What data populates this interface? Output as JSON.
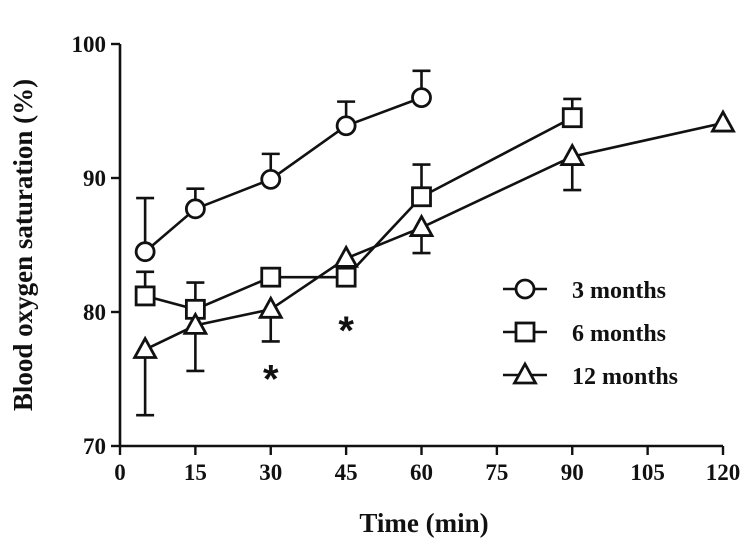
{
  "chart_data": {
    "type": "line",
    "xlabel": "Time (min)",
    "ylabel": "Blood oxygen saturation  (%)",
    "xlim": [
      0,
      120
    ],
    "ylim": [
      70,
      100
    ],
    "x_ticks": [
      0,
      15,
      30,
      45,
      60,
      75,
      90,
      105,
      120
    ],
    "y_ticks": [
      70,
      80,
      90,
      100
    ],
    "grid": false,
    "legend_position": "right",
    "series": [
      {
        "name": "3 months",
        "marker": "circle",
        "x": [
          5,
          15,
          30,
          45,
          60
        ],
        "y": [
          84.5,
          87.7,
          89.9,
          93.9,
          96.0
        ],
        "err_upper": [
          4.0,
          1.5,
          1.9,
          1.8,
          2.0
        ],
        "err_lower": [
          0.0,
          0.0,
          0.0,
          0.0,
          0.0
        ]
      },
      {
        "name": "6 months",
        "marker": "square",
        "x": [
          5,
          15,
          30,
          45,
          60,
          90
        ],
        "y": [
          81.2,
          80.2,
          82.6,
          82.6,
          88.6,
          94.5
        ],
        "err_upper": [
          1.8,
          2.0,
          0.0,
          0.0,
          2.4,
          1.4
        ],
        "err_lower": [
          0.0,
          0.0,
          0.0,
          0.0,
          0.0,
          0.0
        ]
      },
      {
        "name": "12 months",
        "marker": "triangle",
        "x": [
          5,
          15,
          30,
          45,
          60,
          90,
          120
        ],
        "y": [
          77.2,
          79.0,
          80.2,
          84.0,
          86.3,
          91.6,
          94.1
        ],
        "err_upper": [
          0.0,
          0.0,
          0.0,
          0.0,
          0.0,
          0.0,
          0.0
        ],
        "err_lower": [
          4.9,
          3.4,
          2.4,
          0.0,
          1.9,
          2.5,
          0.0
        ]
      }
    ],
    "annotations": [
      {
        "text": "*",
        "x": 45,
        "y": 79.4
      },
      {
        "text": "*",
        "x": 30,
        "y": 75.8
      }
    ]
  }
}
